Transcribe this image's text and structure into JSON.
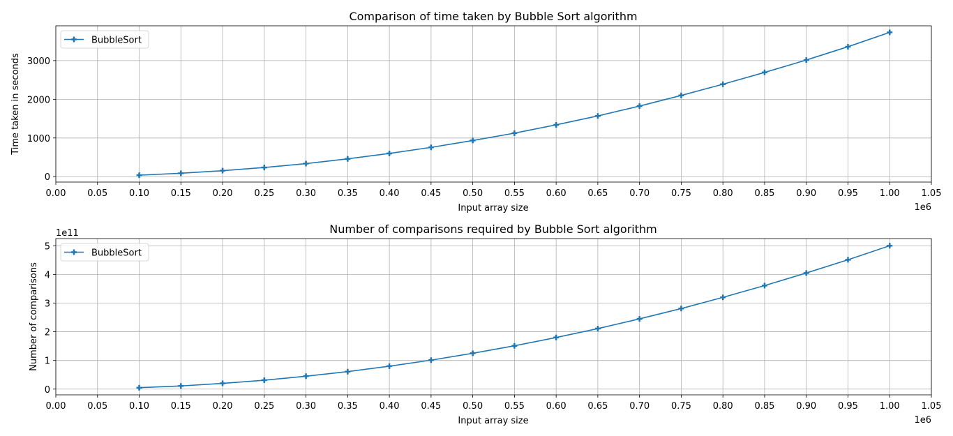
{
  "chart_data": [
    {
      "type": "line",
      "title": "Comparison of time taken by Bubble Sort algorithm",
      "xlabel": "Input array size",
      "ylabel": "Time taken in seconds",
      "x_offset_text": "1e6",
      "y_offset_text": "",
      "xlim": [
        0.0,
        1.05
      ],
      "ylim": [
        -140,
        3900
      ],
      "x_ticks": [
        "0.00",
        "0.05",
        "0.10",
        "0.15",
        "0.20",
        "0.25",
        "0.30",
        "0.35",
        "0.40",
        "0.45",
        "0.50",
        "0.55",
        "0.60",
        "0.65",
        "0.70",
        "0.75",
        "0.80",
        "0.85",
        "0.90",
        "0.95",
        "1.00",
        "1.05"
      ],
      "y_ticks": [
        0,
        1000,
        2000,
        3000
      ],
      "grid": true,
      "legend": "upper-left",
      "x": [
        0.1,
        0.15,
        0.2,
        0.25,
        0.3,
        0.35,
        0.4,
        0.45,
        0.5,
        0.55,
        0.6,
        0.65,
        0.7,
        0.75,
        0.8,
        0.85,
        0.9,
        0.95,
        1.0
      ],
      "series": [
        {
          "name": "BubbleSort",
          "color": "#1f77b4",
          "marker": "plus",
          "values": [
            38,
            88,
            155,
            237,
            337,
            460,
            600,
            757,
            935,
            1125,
            1340,
            1570,
            1825,
            2100,
            2390,
            2695,
            3015,
            3360,
            3730
          ]
        }
      ]
    },
    {
      "type": "line",
      "title": "Number of comparisons required by Bubble Sort algorithm",
      "xlabel": "Input array size",
      "ylabel": "Number of comparisons",
      "x_offset_text": "1e6",
      "y_offset_text": "1e11",
      "xlim": [
        0.0,
        1.05
      ],
      "ylim": [
        -0.2,
        5.25
      ],
      "x_ticks": [
        "0.00",
        "0.05",
        "0.10",
        "0.15",
        "0.20",
        "0.25",
        "0.30",
        "0.35",
        "0.40",
        "0.45",
        "0.50",
        "0.55",
        "0.60",
        "0.65",
        "0.70",
        "0.75",
        "0.80",
        "0.85",
        "0.90",
        "0.95",
        "1.00",
        "1.05"
      ],
      "y_ticks": [
        0,
        1,
        2,
        3,
        4,
        5
      ],
      "grid": true,
      "legend": "upper-left",
      "x": [
        0.1,
        0.15,
        0.2,
        0.25,
        0.3,
        0.35,
        0.4,
        0.45,
        0.5,
        0.55,
        0.6,
        0.65,
        0.7,
        0.75,
        0.8,
        0.85,
        0.9,
        0.95,
        1.0
      ],
      "series": [
        {
          "name": "BubbleSort",
          "color": "#1f77b4",
          "marker": "plus",
          "values": [
            0.05,
            0.11,
            0.2,
            0.31,
            0.45,
            0.61,
            0.8,
            1.01,
            1.25,
            1.51,
            1.8,
            2.11,
            2.45,
            2.81,
            3.2,
            3.61,
            4.05,
            4.51,
            5.0
          ]
        }
      ]
    }
  ]
}
